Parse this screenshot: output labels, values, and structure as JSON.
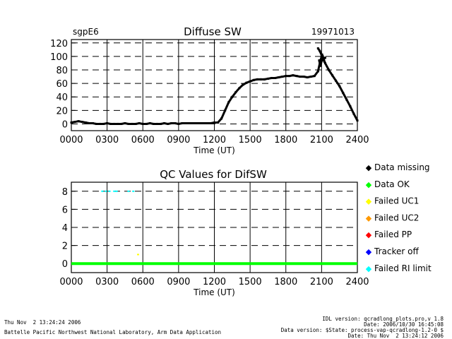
{
  "header": {
    "site": "sgpE6",
    "title": "Diffuse SW",
    "date": "19971013"
  },
  "chart_data": [
    {
      "type": "scatter",
      "title": "Diffuse SW",
      "xlabel": "Time (UT)",
      "ylabel": "",
      "xlim": [
        0,
        2400
      ],
      "ylim": [
        -10,
        125
      ],
      "x_ticks": [
        "0000",
        "0300",
        "0600",
        "0900",
        "1200",
        "1500",
        "1800",
        "2100",
        "2400"
      ],
      "y_ticks": [
        0,
        20,
        40,
        60,
        80,
        100,
        120
      ],
      "grid": true,
      "series": [
        {
          "color": "#000000",
          "points": [
            [
              0,
              2
            ],
            [
              30,
              3
            ],
            [
              60,
              4
            ],
            [
              90,
              3
            ],
            [
              120,
              2
            ],
            [
              150,
              1
            ],
            [
              180,
              1
            ],
            [
              210,
              0
            ],
            [
              240,
              0
            ],
            [
              270,
              0
            ],
            [
              300,
              1
            ],
            [
              330,
              0
            ],
            [
              360,
              0
            ],
            [
              390,
              0
            ],
            [
              420,
              0
            ],
            [
              450,
              1
            ],
            [
              480,
              0
            ],
            [
              510,
              0
            ],
            [
              540,
              0
            ],
            [
              570,
              1
            ],
            [
              600,
              0
            ],
            [
              630,
              0
            ],
            [
              660,
              1
            ],
            [
              690,
              0
            ],
            [
              720,
              0
            ],
            [
              750,
              0
            ],
            [
              780,
              1
            ],
            [
              810,
              0
            ],
            [
              840,
              1
            ],
            [
              870,
              1
            ],
            [
              900,
              0
            ],
            [
              930,
              1
            ],
            [
              960,
              1
            ],
            [
              990,
              1
            ],
            [
              1020,
              1
            ],
            [
              1050,
              1
            ],
            [
              1080,
              1
            ],
            [
              1110,
              1
            ],
            [
              1140,
              1
            ],
            [
              1170,
              1
            ],
            [
              1200,
              2
            ],
            [
              1230,
              2
            ],
            [
              1260,
              8
            ],
            [
              1290,
              20
            ],
            [
              1320,
              32
            ],
            [
              1350,
              40
            ],
            [
              1380,
              47
            ],
            [
              1410,
              53
            ],
            [
              1440,
              58
            ],
            [
              1470,
              61
            ],
            [
              1500,
              63
            ],
            [
              1530,
              65
            ],
            [
              1560,
              66
            ],
            [
              1590,
              66
            ],
            [
              1620,
              66
            ],
            [
              1650,
              67
            ],
            [
              1680,
              68
            ],
            [
              1710,
              68
            ],
            [
              1740,
              69
            ],
            [
              1770,
              70
            ],
            [
              1800,
              71
            ],
            [
              1830,
              71
            ],
            [
              1860,
              72
            ],
            [
              1890,
              71
            ],
            [
              1920,
              70
            ],
            [
              1950,
              70
            ],
            [
              1980,
              69
            ],
            [
              2010,
              70
            ],
            [
              2040,
              71
            ],
            [
              2070,
              78
            ],
            [
              2085,
              90
            ],
            [
              2100,
              100
            ],
            [
              2115,
              95
            ],
            [
              2130,
              90
            ],
            [
              2160,
              80
            ],
            [
              2190,
              72
            ],
            [
              2220,
              64
            ],
            [
              2250,
              56
            ],
            [
              2280,
              46
            ],
            [
              2310,
              36
            ],
            [
              2340,
              26
            ],
            [
              2370,
              15
            ],
            [
              2400,
              5
            ]
          ]
        },
        {
          "color": "#000000",
          "points": [
            [
              2070,
              112
            ],
            [
              2085,
              108
            ],
            [
              2100,
              102
            ],
            [
              2115,
              96
            ],
            [
              2130,
              98
            ],
            [
              2080,
              94
            ],
            [
              2090,
              86
            ],
            [
              2110,
              100
            ],
            [
              2125,
              92
            ]
          ]
        }
      ]
    },
    {
      "type": "scatter",
      "title": "QC Values for DifSW",
      "xlabel": "Time (UT)",
      "ylabel": "",
      "xlim": [
        0,
        2400
      ],
      "ylim": [
        -1,
        9
      ],
      "x_ticks": [
        "0000",
        "0300",
        "0600",
        "0900",
        "1200",
        "1500",
        "1800",
        "2100",
        "2400"
      ],
      "y_ticks": [
        0,
        2,
        4,
        6,
        8
      ],
      "grid": true,
      "series": [
        {
          "name": "Data OK",
          "color": "#00ff00",
          "kind": "line",
          "points": [
            [
              0,
              0
            ],
            [
              2400,
              0
            ]
          ]
        },
        {
          "name": "Failed UC1",
          "color": "#ffff00",
          "kind": "points",
          "points": [
            [
              560,
              1
            ]
          ]
        },
        {
          "name": "Failed RI limit",
          "color": "#00ffff",
          "kind": "points",
          "points": [
            [
              260,
              8
            ],
            [
              290,
              8
            ],
            [
              320,
              8
            ],
            [
              360,
              8
            ],
            [
              380,
              8
            ],
            [
              480,
              8
            ],
            [
              520,
              8
            ]
          ]
        }
      ]
    }
  ],
  "legend": {
    "items": [
      {
        "label": "Data missing",
        "color": "#000000"
      },
      {
        "label": "Data OK",
        "color": "#00ff00"
      },
      {
        "label": "Failed UC1",
        "color": "#ffff00"
      },
      {
        "label": "Failed UC2",
        "color": "#ff9900"
      },
      {
        "label": "Failed PP",
        "color": "#ff0000"
      },
      {
        "label": "Tracker off",
        "color": "#0000ff"
      },
      {
        "label": "Failed RI limit",
        "color": "#00ffff"
      }
    ]
  },
  "footer": {
    "left_line1": "Thu Nov  2 13:24:24 2006",
    "left_line2": "Battelle Pacific Northwest National Laboratory, Arm Data Application",
    "right_line1": "IDL version: qcradlong_plots.pro,v 1.8",
    "right_line2": "Date: 2006/10/30 16:45:08",
    "right_line3": "Data version: $State: process-vap-qcradlong-1.2-0 $",
    "right_line4": "Date: Thu Nov  2 13:24:12 2006"
  }
}
